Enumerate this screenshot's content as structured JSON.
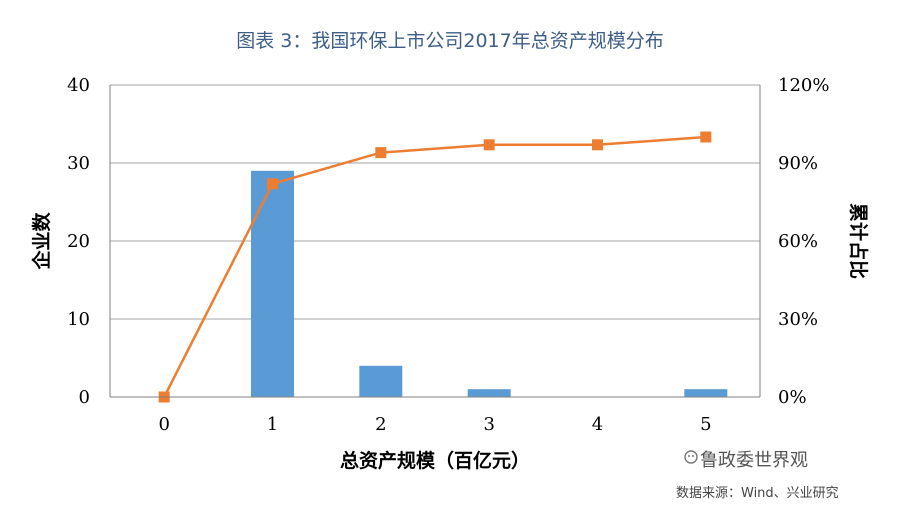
{
  "title": "图表 3：我国环保上市公司2017年总资产规模分布",
  "watermark": "鲁政委世界观",
  "source": "数据来源：Wind、兴业研究",
  "chart_data": {
    "type": "bar",
    "categories": [
      "0",
      "1",
      "2",
      "3",
      "4",
      "5"
    ],
    "series": [
      {
        "values": [
          0,
          29,
          4,
          1,
          0,
          1
        ],
        "color": "#5b9bd5",
        "axis": "left",
        "kind": "bar"
      },
      {
        "values": [
          0,
          82,
          94,
          97,
          97,
          100
        ],
        "color": "#ed7d31",
        "axis": "right",
        "kind": "line"
      }
    ],
    "xlabel": "总资产规模（百亿元）",
    "ylabel": "企业数",
    "y2label": "累计占比",
    "ylim": [
      0,
      40
    ],
    "y2lim": [
      0,
      120
    ],
    "yticks": [
      "0",
      "10",
      "20",
      "30",
      "40"
    ],
    "y2ticks": [
      "0%",
      "30%",
      "60%",
      "90%",
      "120%"
    ],
    "grid": true,
    "legend": "none"
  }
}
